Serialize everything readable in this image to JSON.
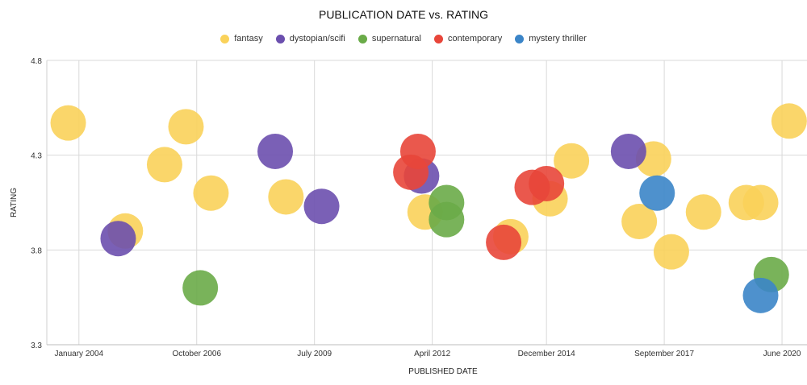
{
  "chart_data": {
    "type": "scatter",
    "title": "PUBLICATION DATE vs. RATING",
    "xlabel": "PUBLISHED DATE",
    "ylabel": "RATING",
    "x_ticks": [
      "January 2004",
      "October 2006",
      "July 2009",
      "April 2012",
      "December 2014",
      "September 2017",
      "June 2020"
    ],
    "xlim": [
      "2003-04",
      "2021-01"
    ],
    "ylim": [
      3.3,
      4.8
    ],
    "y_ticks": [
      3.3,
      3.8,
      4.3,
      4.8
    ],
    "grid": true,
    "legend_position": "top",
    "series": [
      {
        "name": "fantasy",
        "color": "#FAD25A",
        "points": [
          {
            "x": "2003-10",
            "y": 4.47
          },
          {
            "x": "2005-02",
            "y": 3.9
          },
          {
            "x": "2006-01",
            "y": 4.25
          },
          {
            "x": "2006-07",
            "y": 4.45
          },
          {
            "x": "2007-02",
            "y": 4.1
          },
          {
            "x": "2008-11",
            "y": 4.08
          },
          {
            "x": "2012-02",
            "y": 4.0
          },
          {
            "x": "2014-02",
            "y": 3.87
          },
          {
            "x": "2015-01",
            "y": 4.07
          },
          {
            "x": "2015-07",
            "y": 4.27
          },
          {
            "x": "2017-02",
            "y": 3.95
          },
          {
            "x": "2017-06",
            "y": 4.28
          },
          {
            "x": "2017-11",
            "y": 3.79
          },
          {
            "x": "2018-08",
            "y": 4.0
          },
          {
            "x": "2019-08",
            "y": 4.05
          },
          {
            "x": "2019-12",
            "y": 4.05
          },
          {
            "x": "2020-08",
            "y": 4.48
          }
        ]
      },
      {
        "name": "dystopian/scifi",
        "color": "#6B4FAE",
        "points": [
          {
            "x": "2004-12",
            "y": 3.86
          },
          {
            "x": "2008-08",
            "y": 4.32
          },
          {
            "x": "2009-09",
            "y": 4.03
          },
          {
            "x": "2012-01",
            "y": 4.19
          },
          {
            "x": "2016-11",
            "y": 4.32
          }
        ]
      },
      {
        "name": "supernatural",
        "color": "#6AAB48",
        "points": [
          {
            "x": "2006-11",
            "y": 3.6
          },
          {
            "x": "2012-08",
            "y": 4.05
          },
          {
            "x": "2012-08",
            "y": 3.96
          },
          {
            "x": "2020-03",
            "y": 3.67
          }
        ]
      },
      {
        "name": "contemporary",
        "color": "#E8463A",
        "points": [
          {
            "x": "2011-10",
            "y": 4.21
          },
          {
            "x": "2011-12",
            "y": 4.32
          },
          {
            "x": "2013-12",
            "y": 3.84
          },
          {
            "x": "2014-08",
            "y": 4.13
          },
          {
            "x": "2014-12",
            "y": 4.15
          }
        ]
      },
      {
        "name": "mystery thriller",
        "color": "#3B85C8",
        "points": [
          {
            "x": "2017-07",
            "y": 4.1
          },
          {
            "x": "2019-12",
            "y": 3.56
          }
        ]
      }
    ]
  }
}
